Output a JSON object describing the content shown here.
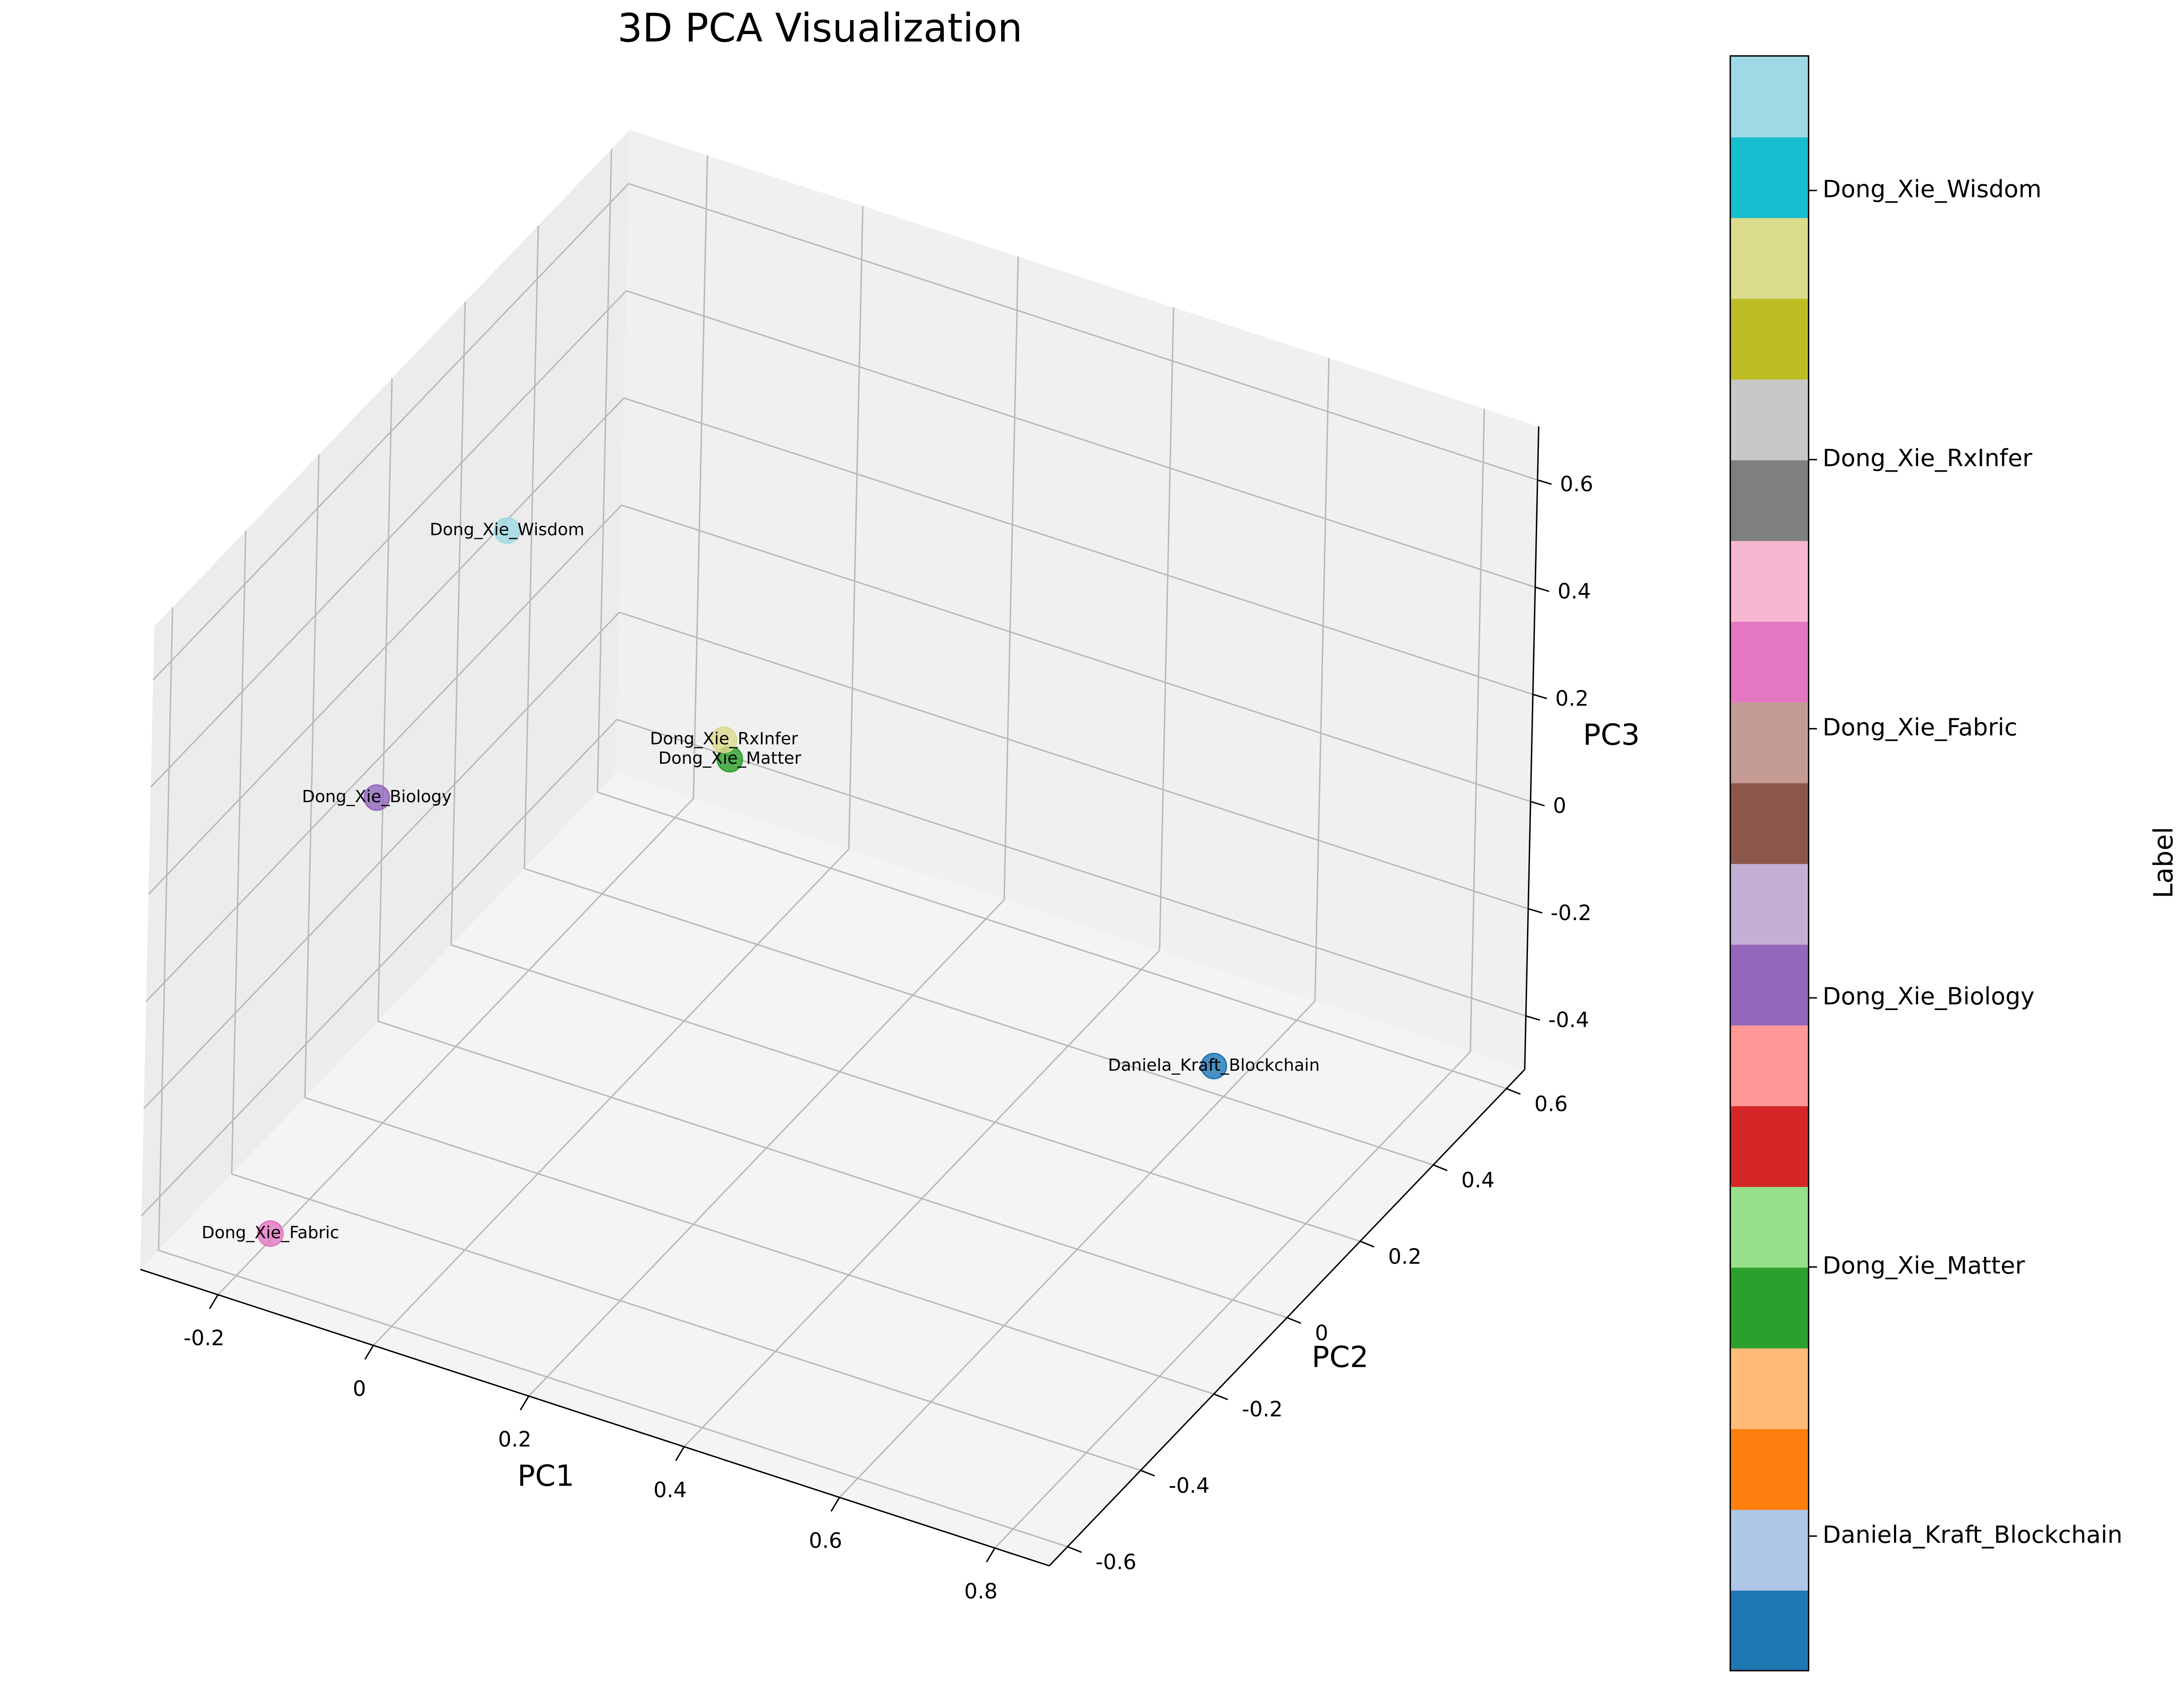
{
  "chart_data": {
    "type": "scatter3d",
    "title": "3D PCA Visualization",
    "xlabel": "PC1",
    "ylabel": "PC2",
    "zlabel": "PC3",
    "labels": [
      "Daniela_Kraft_Blockchain",
      "Dong_Xie_Matter",
      "Dong_Xie_Biology",
      "Dong_Xie_Fabric",
      "Dong_Xie_RxInfer",
      "Dong_Xie_Wisdom"
    ],
    "x": [
      0.68,
      0.035,
      -0.157,
      -0.147,
      0.011,
      -0.103
    ],
    "y": [
      0.196,
      0.235,
      -0.33,
      -0.623,
      0.27,
      -0.1
    ],
    "z": [
      -0.26,
      -0.02,
      0.22,
      -0.38,
      -0.02,
      0.58
    ],
    "colors": [
      "#1f77b4",
      "#2ca02c",
      "#9467bd",
      "#e377c2",
      "#dbdb8d",
      "#9edae5"
    ],
    "xlim": [
      -0.3,
      0.87
    ],
    "ylim": [
      -0.65,
      0.65
    ],
    "zlim": [
      -0.5,
      0.7
    ],
    "xticks": [
      -0.2,
      0.0,
      0.2,
      0.4,
      0.6,
      0.8
    ],
    "yticks": [
      -0.6,
      -0.4,
      -0.2,
      0.0,
      0.2,
      0.4,
      0.6
    ],
    "zticks": [
      -0.4,
      -0.2,
      0.0,
      0.2,
      0.4,
      0.6
    ],
    "grid": true,
    "colorbar": {
      "label": "Label",
      "lim": [
        -0.5,
        5.5
      ],
      "ticks": [
        {
          "value": 0,
          "label": "Daniela_Kraft_Blockchain"
        },
        {
          "value": 1,
          "label": "Dong_Xie_Matter"
        },
        {
          "value": 2,
          "label": "Dong_Xie_Biology"
        },
        {
          "value": 3,
          "label": "Dong_Xie_Fabric"
        },
        {
          "value": 4,
          "label": "Dong_Xie_RxInfer"
        },
        {
          "value": 5,
          "label": "Dong_Xie_Wisdom"
        }
      ],
      "colors": [
        "#1f77b4",
        "#aec7e8",
        "#ff7f0e",
        "#ffbb78",
        "#2ca02c",
        "#98df8a",
        "#d62728",
        "#ff9896",
        "#9467bd",
        "#c5b0d5",
        "#8c564b",
        "#c49c94",
        "#e377c2",
        "#f7b6d2",
        "#7f7f7f",
        "#c7c7c7",
        "#bcbd22",
        "#dbdb8d",
        "#17becf",
        "#9edae5"
      ]
    }
  }
}
